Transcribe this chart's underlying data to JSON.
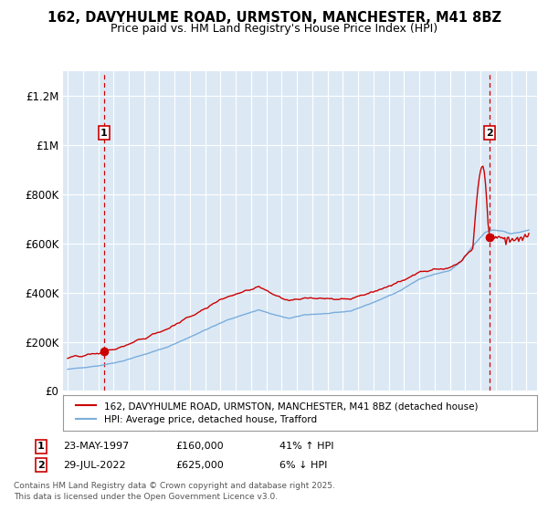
{
  "title_line1": "162, DAVYHULME ROAD, URMSTON, MANCHESTER, M41 8BZ",
  "title_line2": "Price paid vs. HM Land Registry's House Price Index (HPI)",
  "legend_red": "162, DAVYHULME ROAD, URMSTON, MANCHESTER, M41 8BZ (detached house)",
  "legend_blue": "HPI: Average price, detached house, Trafford",
  "annotation1_date": "23-MAY-1997",
  "annotation1_price": "£160,000",
  "annotation1_hpi": "41% ↑ HPI",
  "annotation2_date": "29-JUL-2022",
  "annotation2_price": "£625,000",
  "annotation2_hpi": "6% ↓ HPI",
  "footer": "Contains HM Land Registry data © Crown copyright and database right 2025.\nThis data is licensed under the Open Government Licence v3.0.",
  "red_color": "#cc0000",
  "blue_color": "#7aaddc",
  "bg_color": "#dce9f5",
  "grid_color": "#ffffff",
  "ylim": [
    0,
    1300000
  ],
  "yticks": [
    0,
    200000,
    400000,
    600000,
    800000,
    1000000,
    1200000
  ],
  "ytick_labels": [
    "£0",
    "£200K",
    "£400K",
    "£600K",
    "£800K",
    "£1M",
    "£1.2M"
  ],
  "sale1_t": 1997.39,
  "sale2_t": 2022.57,
  "sale1_price": 160000,
  "sale2_price": 625000,
  "xmin": 1994.7,
  "xmax": 2025.7
}
